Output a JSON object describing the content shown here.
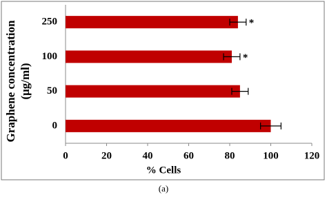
{
  "chart_data": {
    "type": "hbar",
    "ylabel": [
      "Graphene concentration",
      "(μg/ml)"
    ],
    "xlabel": "% Cells",
    "caption": "(a)",
    "categories": [
      "250",
      "100",
      "50",
      "0"
    ],
    "values": [
      84,
      81,
      85,
      100
    ],
    "errors": [
      4,
      4,
      4,
      5
    ],
    "markers": [
      "*",
      "*",
      null,
      null
    ],
    "color": "#c00000",
    "xlim": [
      0,
      120
    ],
    "xticks": [
      0,
      20,
      40,
      60,
      80,
      100,
      120
    ],
    "grid": false
  }
}
